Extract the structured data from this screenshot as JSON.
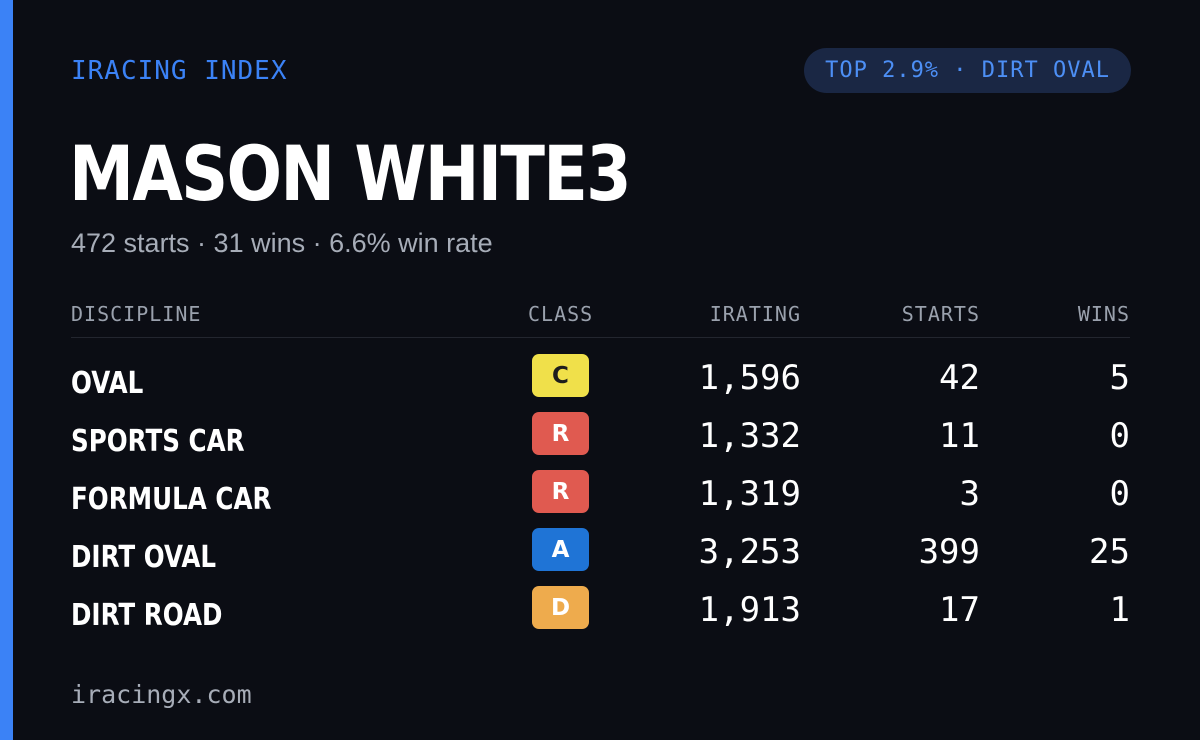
{
  "brand": "IRACING INDEX",
  "rank_badge": "TOP 2.9% · DIRT OVAL",
  "driver": {
    "name": "MASON WHITE3",
    "summary": "472 starts · 31 wins · 6.6% win rate"
  },
  "table": {
    "headers": {
      "discipline": "DISCIPLINE",
      "class": "CLASS",
      "irating": "IRATING",
      "starts": "STARTS",
      "wins": "WINS"
    },
    "rows": [
      {
        "discipline": "OVAL",
        "class": "C",
        "class_bg": "#f0e04a",
        "class_fg": "#1d1d1d",
        "irating": "1,596",
        "starts": "42",
        "wins": "5"
      },
      {
        "discipline": "SPORTS CAR",
        "class": "R",
        "class_bg": "#e05a50",
        "class_fg": "#ffffff",
        "irating": "1,332",
        "starts": "11",
        "wins": "0"
      },
      {
        "discipline": "FORMULA CAR",
        "class": "R",
        "class_bg": "#e05a50",
        "class_fg": "#ffffff",
        "irating": "1,319",
        "starts": "3",
        "wins": "0"
      },
      {
        "discipline": "DIRT OVAL",
        "class": "A",
        "class_bg": "#1f74d6",
        "class_fg": "#ffffff",
        "irating": "3,253",
        "starts": "399",
        "wins": "25"
      },
      {
        "discipline": "DIRT ROAD",
        "class": "D",
        "class_bg": "#eeab4d",
        "class_fg": "#ffffff",
        "irating": "1,913",
        "starts": "17",
        "wins": "1"
      }
    ]
  },
  "footer": "iracingx.com",
  "colors": {
    "accent": "#3b82f6",
    "background": "#0b0d14",
    "pill_bg": "#1a2744",
    "muted_text": "#a7adb8"
  }
}
